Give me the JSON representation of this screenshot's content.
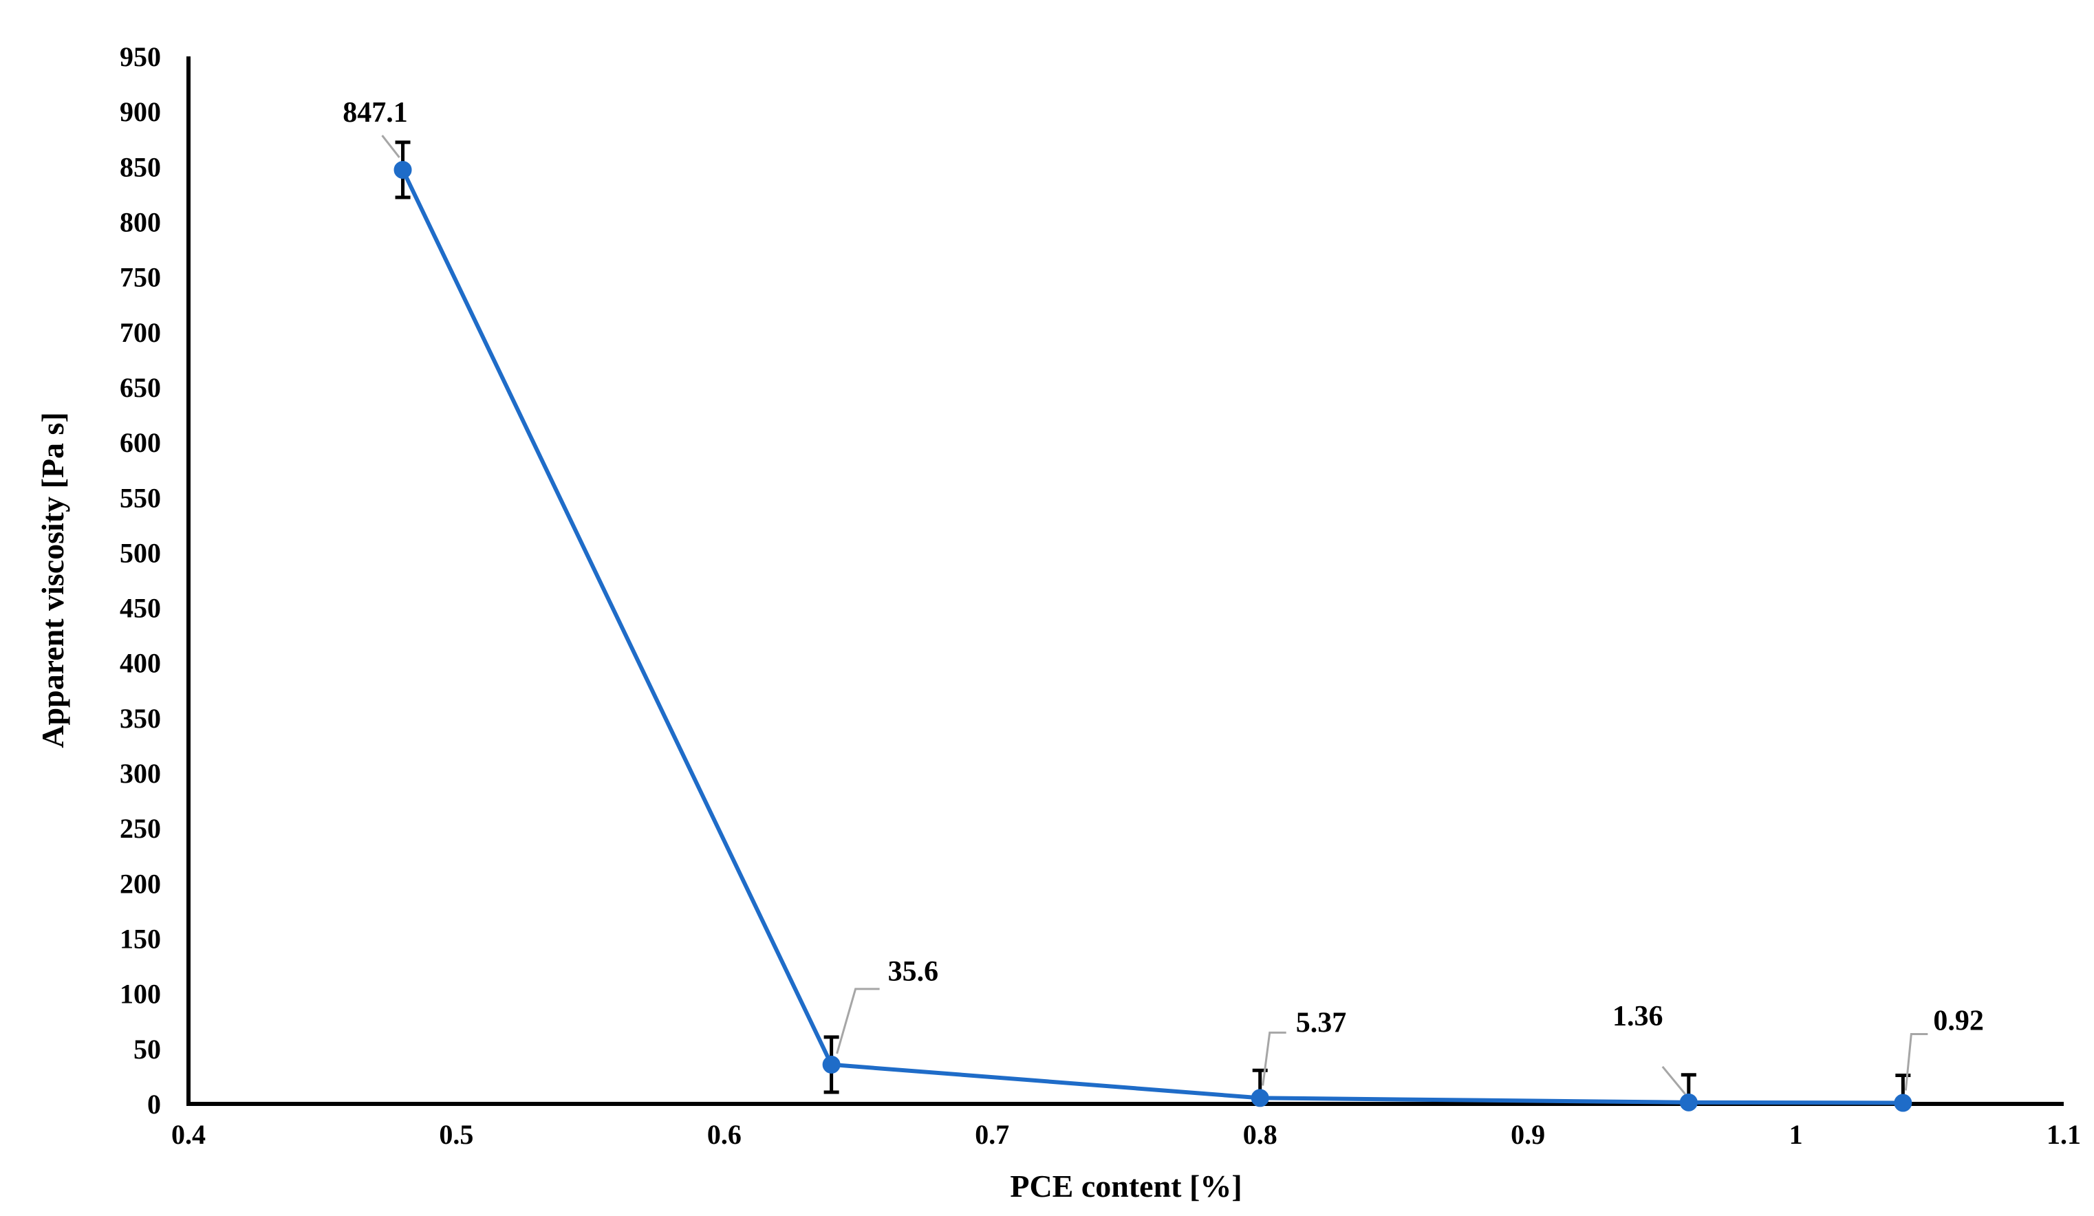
{
  "chart_data": {
    "type": "line",
    "title": "",
    "xlabel": "PCE content [%]",
    "ylabel": "Apparent viscosity [Pa s]",
    "xlim": [
      0.4,
      1.1
    ],
    "ylim": [
      0,
      950
    ],
    "x_ticks": [
      "0.4",
      "0.5",
      "0.6",
      "0.7",
      "0.8",
      "0.9",
      "1",
      "1.1"
    ],
    "y_ticks": [
      "0",
      "50",
      "100",
      "150",
      "200",
      "250",
      "300",
      "350",
      "400",
      "450",
      "500",
      "550",
      "600",
      "650",
      "700",
      "750",
      "800",
      "850",
      "900",
      "950"
    ],
    "grid": false,
    "legend": "none",
    "series": [
      {
        "color": "#1f6cc8",
        "x": [
          0.48,
          0.64,
          0.8,
          0.96,
          1.04
        ],
        "y": [
          847.1,
          35.6,
          5.37,
          1.36,
          0.92
        ],
        "error": [
          25,
          25,
          25,
          25,
          25
        ],
        "labels": [
          "847.1",
          "35.6",
          "5.37",
          "1.36",
          "0.92"
        ]
      }
    ]
  }
}
